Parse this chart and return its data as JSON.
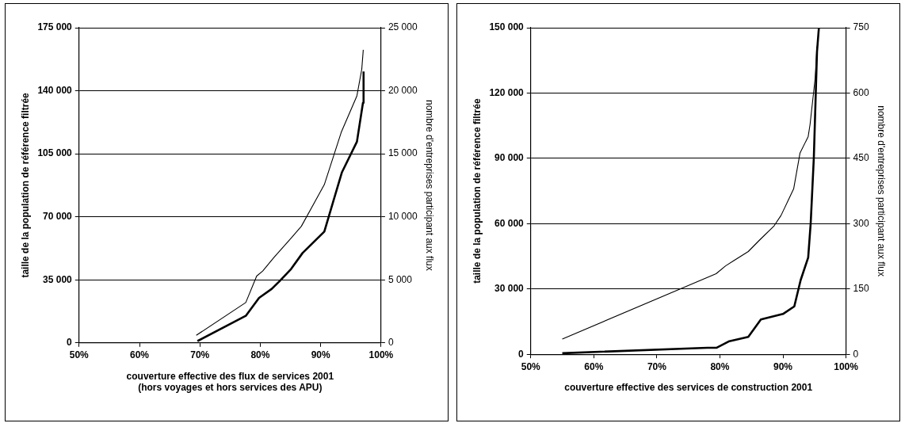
{
  "chart_data": [
    {
      "type": "line",
      "xlabel": "couverture effective des flux de services 2001\n(hors voyages et hors services des APU)",
      "ylabel": "taille de la population de référence filtrée",
      "y2label": "nombre d'entreprises participant aux flux",
      "grid": "y",
      "marker": "none",
      "line_style": "solid",
      "xlim": [
        50,
        100
      ],
      "xticks": [
        {
          "value": 50,
          "label": "50%"
        },
        {
          "value": 60,
          "label": "60%"
        },
        {
          "value": 70,
          "label": "70%"
        },
        {
          "value": 80,
          "label": "80%"
        },
        {
          "value": 90,
          "label": "90%"
        },
        {
          "value": 100,
          "label": "100%"
        }
      ],
      "ylim": [
        0,
        175000
      ],
      "yticks": [
        0,
        {
          "value": 35000,
          "label": "35 000"
        },
        {
          "value": 70000,
          "label": "70 000"
        },
        {
          "value": 105000,
          "label": "105 000"
        },
        {
          "value": 140000,
          "label": "140 000"
        },
        {
          "value": 175000,
          "label": "175 000"
        }
      ],
      "y2lim": [
        0,
        25000
      ],
      "y2ticks": [
        0,
        {
          "value": 5000,
          "label": "5 000"
        },
        {
          "value": 10000,
          "label": "10 000"
        },
        {
          "value": 15000,
          "label": "15 000"
        },
        {
          "value": 20000,
          "label": "20 000"
        },
        {
          "value": 25000,
          "label": "25 000"
        }
      ],
      "series": [
        {
          "color": "#000000",
          "axis": "y",
          "x": [
            69.6,
            77.6,
            79.8,
            81.9,
            83.2,
            85.1,
            87.0,
            90.6,
            93.5,
            96.0,
            97.0,
            97.1
          ],
          "values": [
            1000,
            15000,
            25000,
            30000,
            34300,
            41000,
            49900,
            61800,
            94600,
            111700,
            133300,
            150700
          ]
        },
        {
          "color": "#000000",
          "axis": "y2",
          "x": [
            69.4,
            77.6,
            79.4,
            80.4,
            82.3,
            85.1,
            86.8,
            90.6,
            93.4,
            96.0,
            96.8,
            97.05
          ],
          "values": [
            600,
            3200,
            5300,
            5700,
            6800,
            8300,
            9250,
            12550,
            16700,
            19600,
            21700,
            23250
          ]
        }
      ]
    },
    {
      "type": "line",
      "xlabel": "couverture effective des services de construction 2001",
      "ylabel": "taille de la population de référence filtrée",
      "y2label": "nombre d'entreprises participant aux flux",
      "grid": "y",
      "marker": "none",
      "line_style": "solid",
      "xlim": [
        50,
        100
      ],
      "xticks": [
        {
          "value": 50,
          "label": "50%"
        },
        {
          "value": 60,
          "label": "60%"
        },
        {
          "value": 70,
          "label": "70%"
        },
        {
          "value": 80,
          "label": "80%"
        },
        {
          "value": 90,
          "label": "90%"
        },
        {
          "value": 100,
          "label": "100%"
        }
      ],
      "ylim": [
        0,
        150000
      ],
      "yticks": [
        0,
        {
          "value": 30000,
          "label": "30 000"
        },
        {
          "value": 60000,
          "label": "60 000"
        },
        {
          "value": 90000,
          "label": "90 000"
        },
        {
          "value": 120000,
          "label": "120 000"
        },
        {
          "value": 150000,
          "label": "150 000"
        }
      ],
      "y2lim": [
        0,
        750
      ],
      "y2ticks": [
        0,
        150,
        300,
        450,
        600,
        750
      ],
      "series": [
        {
          "color": "#000000",
          "axis": "y",
          "x": [
            55,
            78,
            79.5,
            81.5,
            84.5,
            86.5,
            90,
            91.8,
            92.8,
            94.0,
            94.4,
            94.9,
            95.4,
            95.7
          ],
          "values": [
            500,
            3000,
            3000,
            6000,
            8000,
            16000,
            18500,
            22000,
            34000,
            44400,
            60200,
            90500,
            139000,
            150000
          ]
        },
        {
          "color": "#000000",
          "axis": "y2",
          "x": [
            55,
            79.4,
            80.9,
            82.2,
            84.5,
            86.2,
            88.6,
            89.7,
            91.7,
            92.7,
            94.0,
            94.3,
            95.1,
            95.4
          ],
          "values": [
            35,
            185,
            203,
            215,
            236,
            261,
            295,
            319,
            380,
            462,
            500,
            528,
            633,
            707
          ]
        }
      ]
    }
  ]
}
